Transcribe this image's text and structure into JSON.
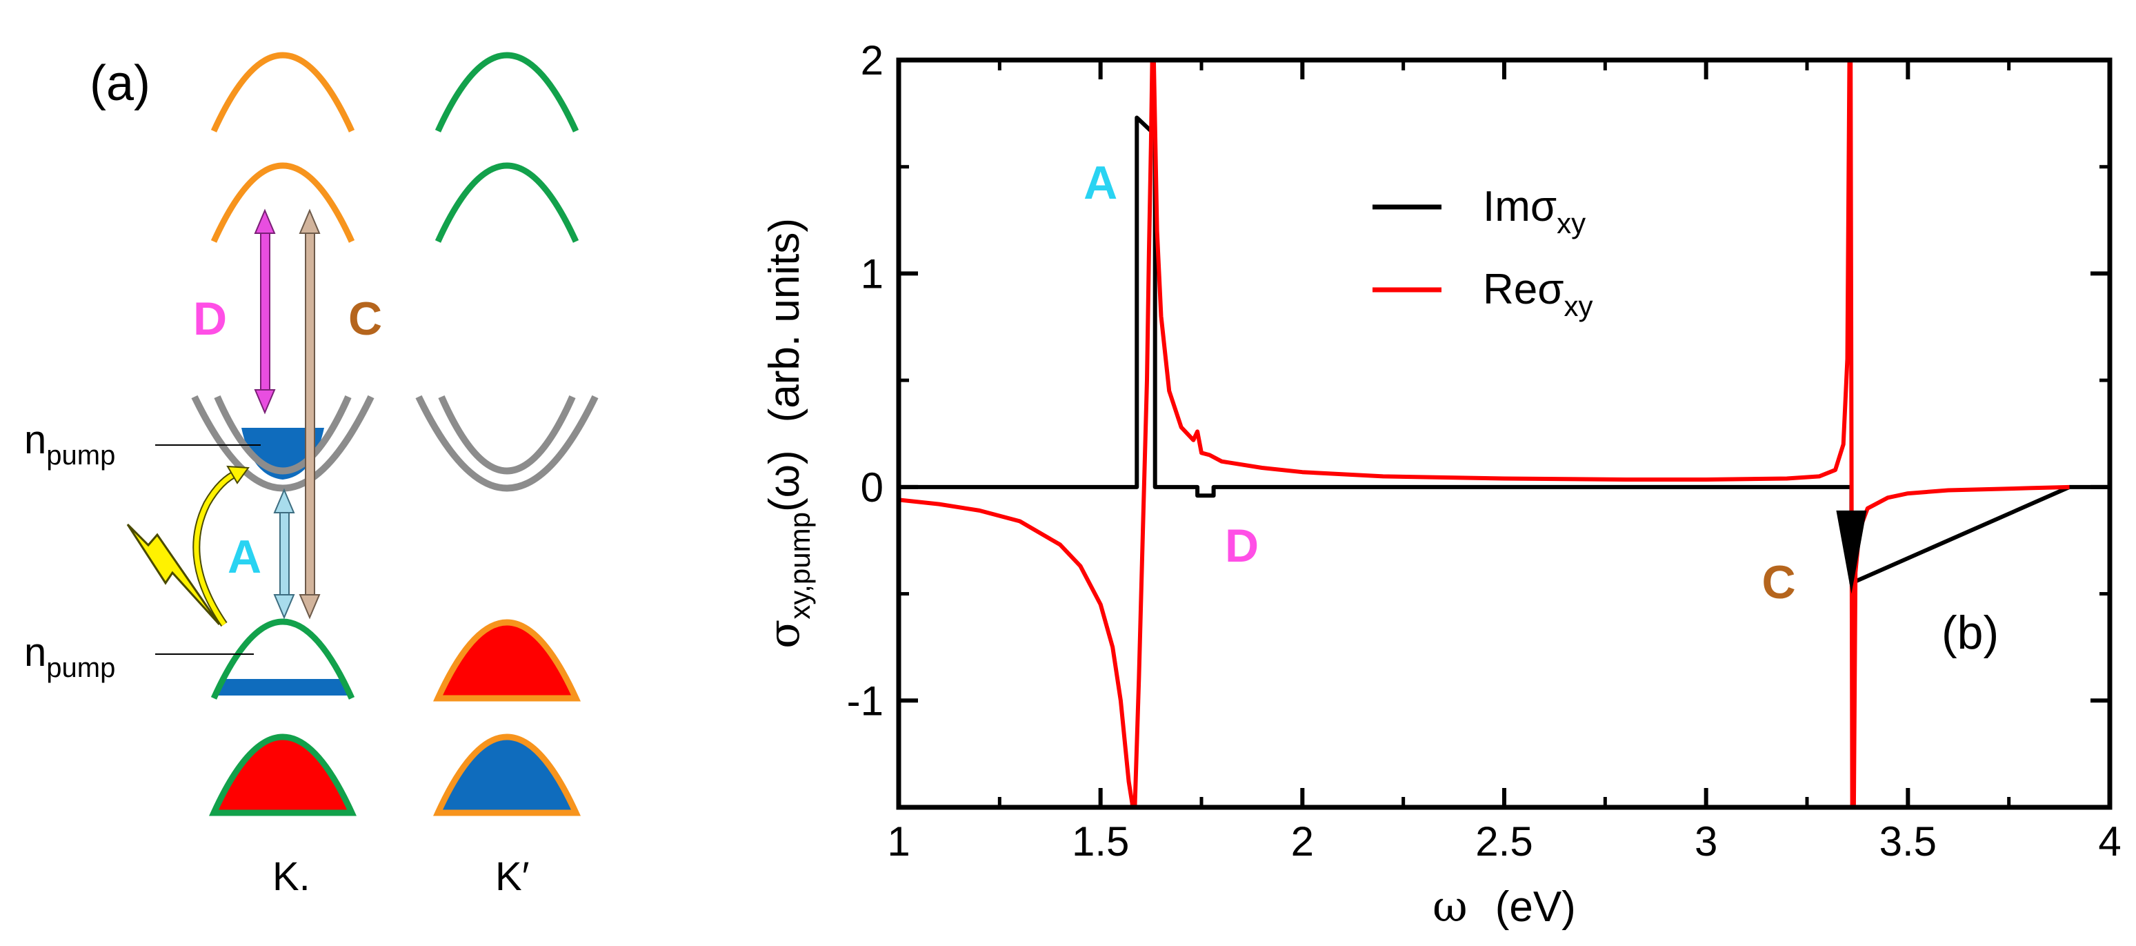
{
  "panel_a": {
    "label": "(a)",
    "valley_labels": [
      "K.",
      "K′"
    ],
    "n_pump_base": "n",
    "n_pump_sub": "pump",
    "transition_labels": {
      "A": "A",
      "C": "C",
      "D": "D"
    },
    "colors": {
      "orange": "#f7941d",
      "green": "#12a14b",
      "gray": "#8c8c8c",
      "red": "#ff0000",
      "blue": "#0f6cbd",
      "magenta": "#e84ee0",
      "tan": "#d2b49c",
      "lightblue": "#a8dcec",
      "yellow": "#fff200",
      "A": "#29d3f2",
      "C": "#b5651d",
      "D": "#ff4fe6"
    }
  },
  "chart_data": {
    "type": "line",
    "panel_label": "(b)",
    "xlabel_sym": "ω",
    "xlabel_unit": "(eV)",
    "ylabel_sym": "σ",
    "ylabel_sub": "xy,pump",
    "ylabel_arg": "(ω)",
    "ylabel_unit": "(arb. units)",
    "xlim": [
      1,
      4
    ],
    "ylim": [
      -1.5,
      2
    ],
    "xticks": [
      1,
      1.5,
      2,
      2.5,
      3,
      3.5,
      4
    ],
    "xtick_labels": [
      "1",
      "1.5",
      "2",
      "2.5",
      "3",
      "3.5",
      "4"
    ],
    "yticks": [
      -1,
      0,
      1,
      2
    ],
    "ytick_labels": [
      "-1",
      "0",
      "1",
      "2"
    ],
    "legend": [
      {
        "base": "Imσ",
        "sub": "xy",
        "color": "#000000"
      },
      {
        "base": "Reσ",
        "sub": "xy",
        "color": "#ff0000"
      }
    ],
    "annotations": [
      {
        "text": "A",
        "x": 1.5,
        "y": 1.35,
        "color": "#29d3f2"
      },
      {
        "text": "D",
        "x": 1.85,
        "y": -0.35,
        "color": "#ff4fe6"
      },
      {
        "text": "C",
        "x": 3.18,
        "y": -0.52,
        "color": "#b5651d"
      }
    ],
    "series": [
      {
        "name": "Imσxy",
        "color": "#000000",
        "x": [
          1,
          1.59,
          1.59,
          1.635,
          1.635,
          1.74,
          1.74,
          1.78,
          1.78,
          3.36,
          3.36,
          3.9,
          4
        ],
        "y": [
          0,
          0,
          1.73,
          1.65,
          0,
          0,
          -0.04,
          -0.04,
          0,
          0,
          -0.45,
          0,
          0
        ]
      },
      {
        "name": "Reσxy",
        "color": "#ff0000",
        "x": [
          1,
          1.1,
          1.2,
          1.3,
          1.4,
          1.45,
          1.5,
          1.53,
          1.55,
          1.57,
          1.58,
          1.585,
          1.595,
          1.605,
          1.615,
          1.62,
          1.625,
          1.628,
          1.632,
          1.64,
          1.65,
          1.67,
          1.7,
          1.73,
          1.74,
          1.75,
          1.77,
          1.8,
          1.9,
          2.0,
          2.2,
          2.5,
          2.8,
          3.0,
          3.2,
          3.28,
          3.32,
          3.34,
          3.35,
          3.355,
          3.358,
          3.362,
          3.366,
          3.37,
          3.38,
          3.4,
          3.45,
          3.5,
          3.6,
          3.7,
          3.8,
          3.9
        ],
        "y": [
          -0.06,
          -0.08,
          -0.11,
          -0.16,
          -0.27,
          -0.37,
          -0.55,
          -0.75,
          -1.0,
          -1.38,
          -1.5,
          -1.5,
          -0.9,
          -0.2,
          0.5,
          1.1,
          1.6,
          2.0,
          2.0,
          1.2,
          0.8,
          0.45,
          0.28,
          0.22,
          0.26,
          0.16,
          0.15,
          0.12,
          0.09,
          0.07,
          0.05,
          0.04,
          0.035,
          0.035,
          0.04,
          0.05,
          0.08,
          0.2,
          0.6,
          2.0,
          2.0,
          -1.5,
          -1.5,
          -0.4,
          -0.2,
          -0.1,
          -0.05,
          -0.03,
          -0.015,
          -0.01,
          -0.005,
          0.0
        ]
      }
    ]
  }
}
